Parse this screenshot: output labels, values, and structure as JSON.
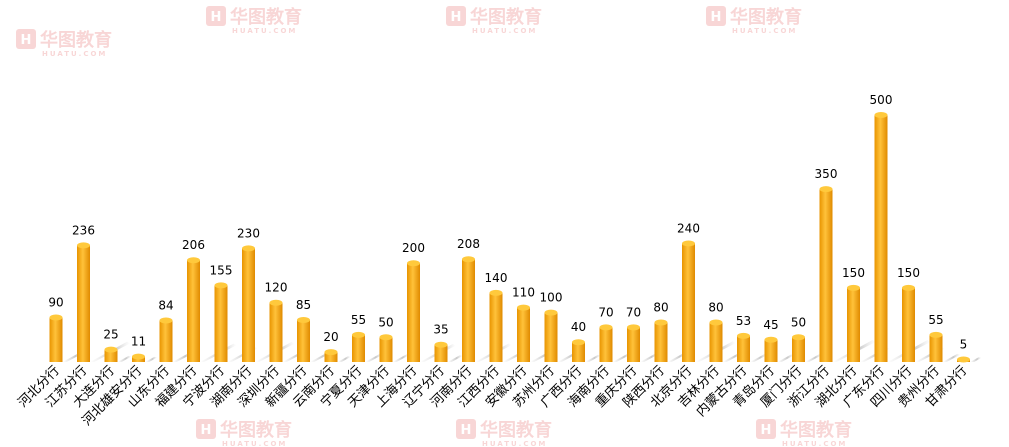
{
  "watermark": {
    "brand": "华图教育",
    "sub": "HUATU.COM"
  },
  "colors": {
    "bar": "#F5A800",
    "bar_light": "#FFC93C",
    "bar_dark": "#D98C00",
    "watermark": "#E24A4A"
  },
  "chart_data": {
    "type": "bar",
    "title": "",
    "xlabel": "",
    "ylabel": "",
    "ylim": [
      0,
      530
    ],
    "grid": false,
    "categories": [
      "河北分行",
      "江苏分行",
      "大连分行",
      "河北雄安分行",
      "山东分行",
      "福建分行",
      "宁波分行",
      "湖南分行",
      "深圳分行",
      "新疆分行",
      "云南分行",
      "宁夏分行",
      "天津分行",
      "上海分行",
      "辽宁分行",
      "河南分行",
      "江西分行",
      "安徽分行",
      "苏州分行",
      "广西分行",
      "海南分行",
      "重庆分行",
      "陕西分行",
      "北京分行",
      "吉林分行",
      "内蒙古分行",
      "青岛分行",
      "厦门分行",
      "浙江分行",
      "湖北分行",
      "广东分行",
      "四川分行",
      "贵州分行",
      "甘肃分行"
    ],
    "values": [
      90,
      236,
      25,
      11,
      84,
      206,
      155,
      230,
      120,
      85,
      20,
      55,
      50,
      200,
      35,
      208,
      140,
      110,
      100,
      40,
      70,
      70,
      80,
      240,
      80,
      53,
      45,
      50,
      350,
      150,
      500,
      150,
      55,
      5
    ],
    "data_labels": [
      "90",
      "236",
      "25",
      "11",
      "84",
      "206",
      "155",
      "230",
      "120",
      "85",
      "20",
      "55",
      "50",
      "200",
      "35",
      "208",
      "140",
      "110",
      "100",
      "40",
      "70",
      "70",
      "80",
      "240",
      "80",
      "53",
      "45",
      "50",
      "350",
      "150",
      "500",
      "150",
      "55",
      "5"
    ]
  }
}
